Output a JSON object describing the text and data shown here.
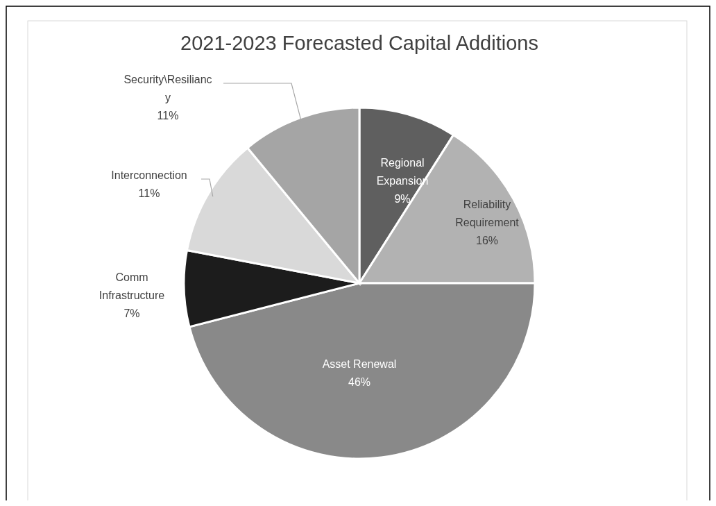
{
  "chart_data": {
    "type": "pie",
    "title": "2021-2023 Forecasted Capital Additions",
    "categories": [
      "Regional Expansion",
      "Reliability Requirement",
      "Asset Renewal",
      "Comm Infrastructure",
      "Interconnection",
      "Security\\Resiliancy"
    ],
    "values": [
      9,
      16,
      46,
      7,
      11,
      11
    ],
    "colors": [
      "#5f5f5f",
      "#b2b2b2",
      "#898989",
      "#1c1c1c",
      "#d9d9d9",
      "#a5a5a5"
    ],
    "value_labels": [
      "9%",
      "16%",
      "46%",
      "7%",
      "11%",
      "11%"
    ]
  }
}
